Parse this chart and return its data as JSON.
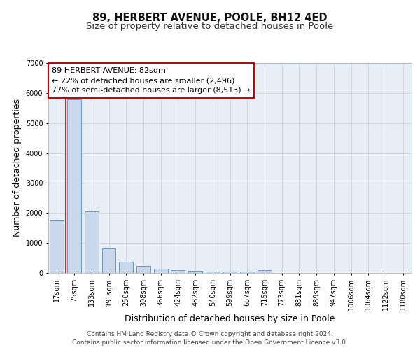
{
  "title": "89, HERBERT AVENUE, POOLE, BH12 4ED",
  "subtitle": "Size of property relative to detached houses in Poole",
  "xlabel": "Distribution of detached houses by size in Poole",
  "ylabel": "Number of detached properties",
  "categories": [
    "17sqm",
    "75sqm",
    "133sqm",
    "191sqm",
    "250sqm",
    "308sqm",
    "366sqm",
    "424sqm",
    "482sqm",
    "540sqm",
    "599sqm",
    "657sqm",
    "715sqm",
    "773sqm",
    "831sqm",
    "889sqm",
    "947sqm",
    "1006sqm",
    "1064sqm",
    "1122sqm",
    "1180sqm"
  ],
  "values": [
    1780,
    5780,
    2060,
    820,
    370,
    230,
    140,
    105,
    70,
    55,
    50,
    50,
    100,
    0,
    0,
    0,
    0,
    0,
    0,
    0,
    0
  ],
  "bar_color": "#c9d9eb",
  "bar_edge_color": "#6699cc",
  "red_line_x": 0.5,
  "annotation_line1": "89 HERBERT AVENUE: 82sqm",
  "annotation_line2": "← 22% of detached houses are smaller (2,496)",
  "annotation_line3": "77% of semi-detached houses are larger (8,513) →",
  "annotation_box_color": "#ffffff",
  "annotation_box_edge": "#cc0000",
  "ylim": [
    0,
    7000
  ],
  "yticks": [
    0,
    1000,
    2000,
    3000,
    4000,
    5000,
    6000,
    7000
  ],
  "plot_bg_color": "#e8eef5",
  "fig_bg_color": "#ffffff",
  "footer_line1": "Contains HM Land Registry data © Crown copyright and database right 2024.",
  "footer_line2": "Contains public sector information licensed under the Open Government Licence v3.0.",
  "title_fontsize": 10.5,
  "subtitle_fontsize": 9.5,
  "axis_label_fontsize": 9,
  "tick_fontsize": 7,
  "annotation_fontsize": 8,
  "footer_fontsize": 6.5
}
